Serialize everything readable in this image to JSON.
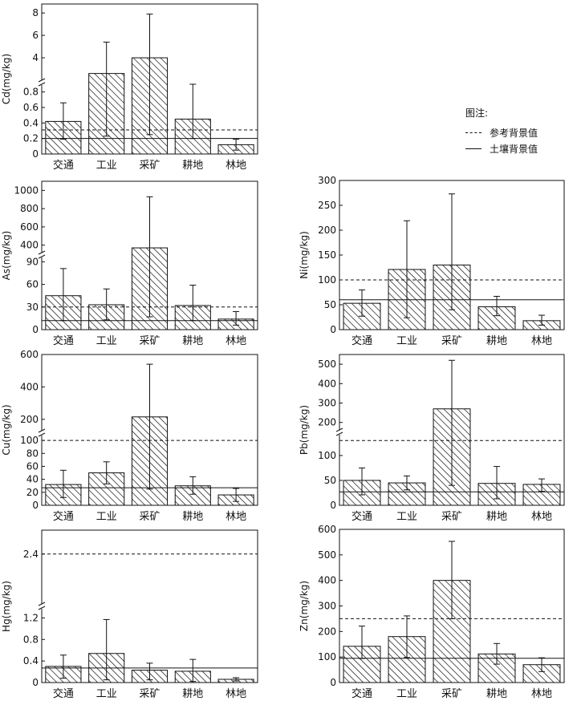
{
  "legend": {
    "title": "图注:",
    "reference_label": "参考背景值",
    "soil_label": "土壤背景值"
  },
  "chart_data": [
    {
      "id": "cd",
      "type": "bar",
      "ylabel": "Cd(mg/kg)",
      "categories": [
        "交通",
        "工业",
        "采矿",
        "耕地",
        "林地"
      ],
      "values": [
        0.42,
        2.6,
        4.0,
        0.45,
        0.12
      ],
      "error_upper": [
        0.66,
        5.4,
        7.9,
        0.9,
        0.19
      ],
      "error_lower": [
        0.19,
        0.23,
        0.25,
        0.2,
        0.05
      ],
      "reference_background": 0.31,
      "soil_background": 0.2,
      "axis_break": true,
      "lower_ticks": [
        "0",
        "0.2",
        "0.4",
        "0.6",
        "0.8"
      ],
      "upper_ticks": [
        "4",
        "6",
        "8"
      ]
    },
    {
      "id": "as",
      "type": "bar",
      "ylabel": "As(mg/kg)",
      "categories": [
        "交通",
        "工业",
        "采矿",
        "耕地",
        "林地"
      ],
      "values": [
        45,
        33,
        370,
        32,
        14
      ],
      "error_upper": [
        81,
        54,
        930,
        59,
        24
      ],
      "error_lower": [
        12,
        13,
        17,
        12,
        6
      ],
      "reference_background": 30,
      "soil_background": 12,
      "axis_break": true,
      "lower_ticks": [
        "0",
        "30",
        "60",
        "90"
      ],
      "upper_ticks": [
        "400",
        "600",
        "800",
        "1000"
      ]
    },
    {
      "id": "ni",
      "type": "bar",
      "ylabel": "Ni(mg/kg)",
      "categories": [
        "交通",
        "工业",
        "采矿",
        "耕地",
        "林地"
      ],
      "values": [
        53,
        121,
        130,
        46,
        18
      ],
      "error_upper": [
        80,
        219,
        273,
        67,
        29
      ],
      "error_lower": [
        27,
        24,
        40,
        28,
        9
      ],
      "reference_background": 100,
      "soil_background": 60,
      "ylim": [
        0,
        300
      ],
      "ticks": [
        "0",
        "50",
        "100",
        "150",
        "200",
        "250",
        "300"
      ]
    },
    {
      "id": "cu",
      "type": "bar",
      "ylabel": "Cu(mg/kg)",
      "categories": [
        "交通",
        "工业",
        "采矿",
        "耕地",
        "林地"
      ],
      "values": [
        32,
        50,
        215,
        30,
        16
      ],
      "error_upper": [
        54,
        67,
        540,
        44,
        26
      ],
      "error_lower": [
        12,
        33,
        25,
        17,
        6
      ],
      "reference_background": 100,
      "soil_background": 27,
      "axis_break": true,
      "lower_ticks": [
        "0",
        "20",
        "40",
        "60",
        "80",
        "100"
      ],
      "upper_ticks": [
        "200",
        "400",
        "600"
      ]
    },
    {
      "id": "pb",
      "type": "bar",
      "ylabel": "Pb(mg/kg)",
      "categories": [
        "交通",
        "工业",
        "采矿",
        "耕地",
        "林地"
      ],
      "values": [
        50,
        45,
        270,
        44,
        42
      ],
      "error_upper": [
        75,
        59,
        520,
        78,
        53
      ],
      "error_lower": [
        21,
        31,
        40,
        13,
        28
      ],
      "reference_background": 130,
      "soil_background": 27,
      "axis_break": true,
      "lower_ticks": [
        "0",
        "50",
        "100"
      ],
      "upper_ticks": [
        "200",
        "300",
        "400",
        "500"
      ]
    },
    {
      "id": "hg",
      "type": "bar",
      "ylabel": "Hg(mg/kg)",
      "categories": [
        "交通",
        "工业",
        "采矿",
        "耕地",
        "林地"
      ],
      "values": [
        0.3,
        0.54,
        0.23,
        0.21,
        0.06
      ],
      "error_upper": [
        0.51,
        1.17,
        0.36,
        0.43,
        0.09
      ],
      "error_lower": [
        0.08,
        0.05,
        0.05,
        0.02,
        0.03
      ],
      "reference_background": 2.4,
      "soil_background": 0.27,
      "axis_break": true,
      "lower_ticks": [
        "0",
        "0.4",
        "0.8",
        "1.2"
      ],
      "upper_ticks": [
        "2.4"
      ]
    },
    {
      "id": "zn",
      "type": "bar",
      "ylabel": "Zn(mg/kg)",
      "categories": [
        "交通",
        "工业",
        "采矿",
        "耕地",
        "林地"
      ],
      "values": [
        142,
        180,
        400,
        112,
        70
      ],
      "error_upper": [
        221,
        261,
        553,
        153,
        97
      ],
      "error_lower": [
        94,
        98,
        250,
        72,
        43
      ],
      "reference_background": 250,
      "soil_background": 95,
      "ylim": [
        0,
        600
      ],
      "ticks": [
        "0",
        "100",
        "200",
        "300",
        "400",
        "500",
        "600"
      ]
    }
  ]
}
